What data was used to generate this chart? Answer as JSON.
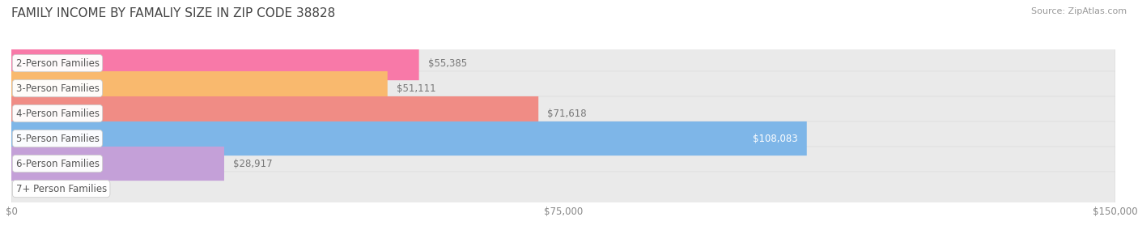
{
  "title": "FAMILY INCOME BY FAMALIY SIZE IN ZIP CODE 38828",
  "source": "Source: ZipAtlas.com",
  "categories": [
    "2-Person Families",
    "3-Person Families",
    "4-Person Families",
    "5-Person Families",
    "6-Person Families",
    "7+ Person Families"
  ],
  "values": [
    55385,
    51111,
    71618,
    108083,
    28917,
    0
  ],
  "bar_colors": [
    "#F879A8",
    "#F9B96E",
    "#F08C85",
    "#7EB6E8",
    "#C4A0D8",
    "#82D4D4"
  ],
  "bar_bg_color": "#EAEAEA",
  "label_bg_color": "#FFFFFF",
  "label_text_color": "#555555",
  "value_text_color_inside": "#FFFFFF",
  "value_text_color_outside": "#777777",
  "xlim": [
    0,
    150000
  ],
  "xticks": [
    0,
    75000,
    150000
  ],
  "xtick_labels": [
    "$0",
    "$75,000",
    "$150,000"
  ],
  "title_fontsize": 11,
  "source_fontsize": 8,
  "bar_label_fontsize": 8.5,
  "value_fontsize": 8.5,
  "tick_fontsize": 8.5,
  "bar_height": 0.68,
  "background_color": "#FFFFFF",
  "bar_gap": 0.18
}
